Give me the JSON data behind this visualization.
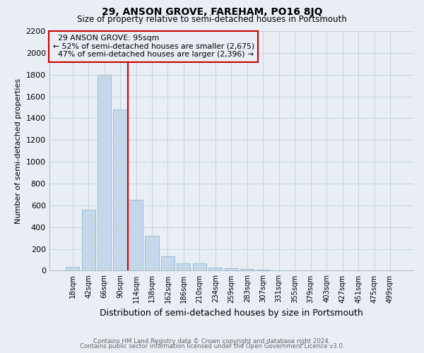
{
  "title": "29, ANSON GROVE, FAREHAM, PO16 8JQ",
  "subtitle": "Size of property relative to semi-detached houses in Portsmouth",
  "xlabel": "Distribution of semi-detached houses by size in Portsmouth",
  "ylabel": "Number of semi-detached properties",
  "footer_line1": "Contains HM Land Registry data © Crown copyright and database right 2024.",
  "footer_line2": "Contains public sector information licensed under the Open Government Licence v3.0.",
  "bar_labels": [
    "18sqm",
    "42sqm",
    "66sqm",
    "90sqm",
    "114sqm",
    "138sqm",
    "162sqm",
    "186sqm",
    "210sqm",
    "234sqm",
    "259sqm",
    "283sqm",
    "307sqm",
    "331sqm",
    "355sqm",
    "379sqm",
    "403sqm",
    "427sqm",
    "451sqm",
    "475sqm",
    "499sqm"
  ],
  "bar_values": [
    35,
    560,
    1800,
    1480,
    650,
    320,
    135,
    70,
    65,
    30,
    20,
    15,
    10,
    5,
    0,
    0,
    0,
    0,
    0,
    0,
    0
  ],
  "bar_color": "#c5d8ea",
  "bar_edgecolor": "#9ab8cc",
  "property_label": "29 ANSON GROVE: 95sqm",
  "pct_smaller": 52,
  "pct_smaller_n": "2,675",
  "pct_larger": 47,
  "pct_larger_n": "2,396",
  "vline_color": "#cc0000",
  "annotation_box_edgecolor": "#cc0000",
  "ylim": [
    0,
    2200
  ],
  "yticks": [
    0,
    200,
    400,
    600,
    800,
    1000,
    1200,
    1400,
    1600,
    1800,
    2000,
    2200
  ],
  "grid_color": "#c8d4de",
  "bg_color": "#e8eef4"
}
